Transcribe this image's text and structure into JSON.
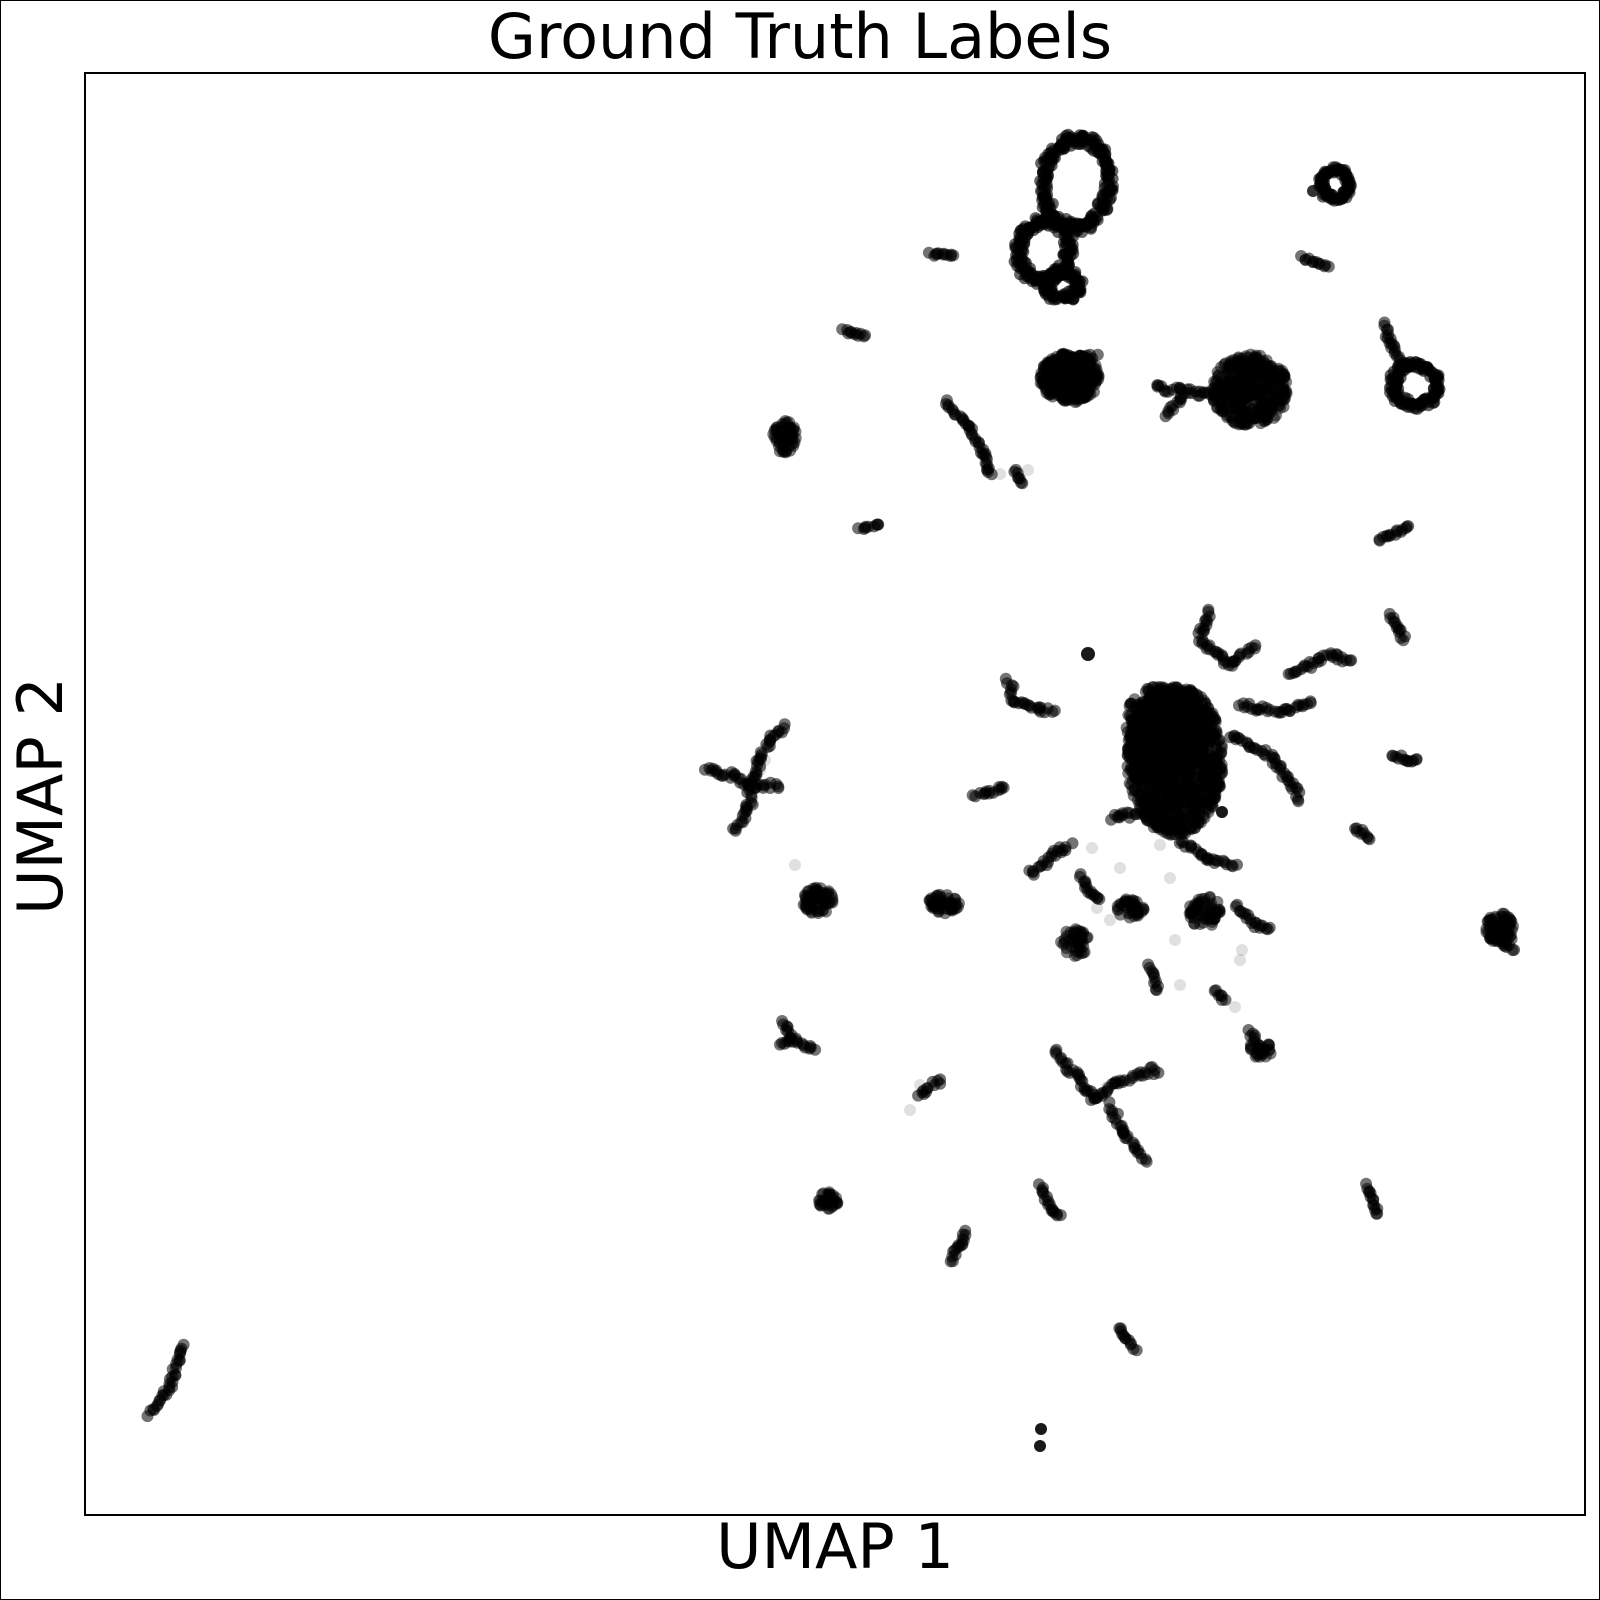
{
  "chart_data": {
    "type": "scatter",
    "title": "Ground Truth Labels",
    "xlabel": "UMAP 1",
    "ylabel": "UMAP 2",
    "xlim": [
      0,
      1
    ],
    "ylim": [
      0,
      1
    ],
    "ticks": "hidden",
    "grid": false,
    "marker_color": "#000000",
    "clusters": [
      {
        "name": "bottom-left streak",
        "shape": "line",
        "points": [
          [
            0.047,
            0.068
          ],
          [
            0.062,
            0.114
          ]
        ]
      },
      {
        "name": "top double ring",
        "shape": "ring-pair",
        "points": [
          [
            0.663,
            0.879
          ],
          [
            0.693,
            0.921
          ],
          [
            0.654,
            0.855
          ]
        ]
      },
      {
        "name": "top-right ring",
        "shape": "ring",
        "points": [
          [
            0.833,
            0.922
          ]
        ]
      },
      {
        "name": "right loop",
        "shape": "ring",
        "points": [
          [
            0.835,
            0.818
          ],
          [
            0.89,
            0.806
          ]
        ]
      },
      {
        "name": "upper-mid blob",
        "shape": "blob",
        "points": [
          [
            0.656,
            0.81
          ]
        ]
      },
      {
        "name": "upper-right blob",
        "shape": "blob",
        "points": [
          [
            0.77,
            0.8
          ],
          [
            0.74,
            0.796
          ]
        ]
      },
      {
        "name": "diagonal streak",
        "shape": "line",
        "points": [
          [
            0.572,
            0.793
          ],
          [
            0.604,
            0.735
          ]
        ]
      },
      {
        "name": "central dense cluster",
        "shape": "blob",
        "points": [
          [
            0.735,
            0.53
          ],
          [
            0.735,
            0.48
          ]
        ]
      },
      {
        "name": "left Y cluster",
        "shape": "branch",
        "points": [
          [
            0.435,
            0.51
          ],
          [
            0.465,
            0.49
          ],
          [
            0.455,
            0.47
          ]
        ]
      },
      {
        "name": "lower Y cluster",
        "shape": "branch",
        "points": [
          [
            0.65,
            0.32
          ],
          [
            0.69,
            0.3
          ],
          [
            0.71,
            0.24
          ]
        ]
      },
      {
        "name": "small fragments",
        "shape": "dots",
        "count": 36
      }
    ]
  }
}
